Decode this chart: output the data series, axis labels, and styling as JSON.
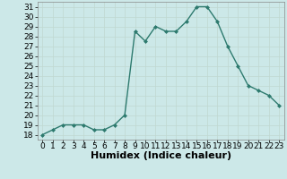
{
  "x": [
    0,
    1,
    2,
    3,
    4,
    5,
    6,
    7,
    8,
    9,
    10,
    11,
    12,
    13,
    14,
    15,
    16,
    17,
    18,
    19,
    20,
    21,
    22,
    23
  ],
  "y": [
    18,
    18.5,
    19,
    19,
    19,
    18.5,
    18.5,
    19,
    20.0,
    28.5,
    27.5,
    29.0,
    28.5,
    28.5,
    29.5,
    31.0,
    31.0,
    29.5,
    27.0,
    25.0,
    23.0,
    22.5,
    22.0,
    21.0
  ],
  "line_color": "#2d7a6e",
  "marker": "D",
  "marker_size": 2.0,
  "bg_color": "#cce8e8",
  "grid_major_color": "#b8d8d8",
  "grid_minor_color": "#d8ecec",
  "xlabel": "Humidex (Indice chaleur)",
  "ylim": [
    17.5,
    31.5
  ],
  "xlim": [
    -0.5,
    23.5
  ],
  "yticks": [
    18,
    19,
    20,
    21,
    22,
    23,
    24,
    25,
    26,
    27,
    28,
    29,
    30,
    31
  ],
  "xticks": [
    0,
    1,
    2,
    3,
    4,
    5,
    6,
    7,
    8,
    9,
    10,
    11,
    12,
    13,
    14,
    15,
    16,
    17,
    18,
    19,
    20,
    21,
    22,
    23
  ],
  "tick_fontsize": 6.5,
  "xlabel_fontsize": 8,
  "line_width": 1.0
}
